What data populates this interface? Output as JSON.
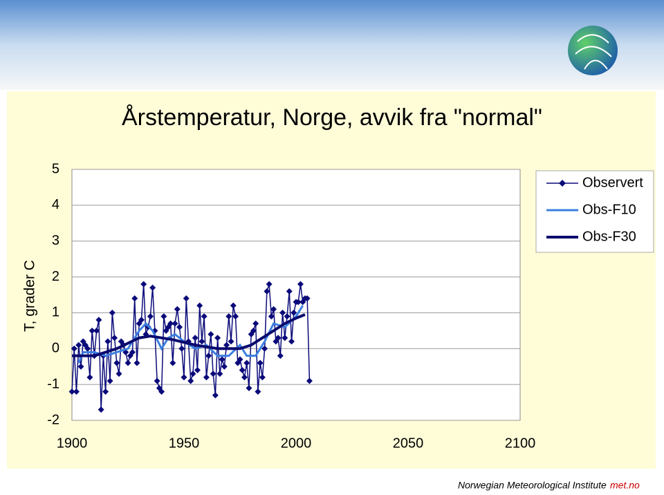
{
  "chart_data": {
    "type": "line",
    "title": "Årstemperatur, Norge, avvik fra \"normal\"",
    "y_label": "T, grader C",
    "xlim": [
      1900,
      2100
    ],
    "xticks": [
      1900,
      1950,
      2000,
      2050,
      2100
    ],
    "ylim": [
      -2,
      5
    ],
    "yticks": [
      -2,
      -1,
      0,
      1,
      2,
      3,
      4,
      5
    ],
    "grid": true,
    "legend": "top-right",
    "series": [
      {
        "name": "Observert",
        "color": "#0a0a7a",
        "marker": "diamond",
        "x": [
          1900,
          1901,
          1902,
          1903,
          1904,
          1905,
          1906,
          1907,
          1908,
          1909,
          1910,
          1911,
          1912,
          1913,
          1914,
          1915,
          1916,
          1917,
          1918,
          1919,
          1920,
          1921,
          1922,
          1923,
          1924,
          1925,
          1926,
          1927,
          1928,
          1929,
          1930,
          1931,
          1932,
          1933,
          1934,
          1935,
          1936,
          1937,
          1938,
          1939,
          1940,
          1941,
          1942,
          1943,
          1944,
          1945,
          1946,
          1947,
          1948,
          1949,
          1950,
          1951,
          1952,
          1953,
          1954,
          1955,
          1956,
          1957,
          1958,
          1959,
          1960,
          1961,
          1962,
          1963,
          1964,
          1965,
          1966,
          1967,
          1968,
          1969,
          1970,
          1971,
          1972,
          1973,
          1974,
          1975,
          1976,
          1977,
          1978,
          1979,
          1980,
          1981,
          1982,
          1983,
          1984,
          1985,
          1986,
          1987,
          1988,
          1989,
          1990,
          1991,
          1992,
          1993,
          1994,
          1995,
          1996,
          1997,
          1998,
          1999,
          2000,
          2001,
          2002,
          2003,
          2004,
          2005,
          2006
        ],
        "values": [
          -1.2,
          0.0,
          -1.2,
          0.1,
          -0.5,
          0.2,
          0.1,
          0.0,
          -0.8,
          0.5,
          -0.2,
          0.5,
          0.8,
          -1.7,
          -0.2,
          -1.2,
          0.2,
          -0.9,
          1.0,
          0.3,
          -0.4,
          -0.7,
          0.2,
          0.1,
          -0.1,
          -0.4,
          -0.2,
          -0.1,
          1.4,
          -0.4,
          0.7,
          0.8,
          1.8,
          0.4,
          0.6,
          0.9,
          1.7,
          0.5,
          -0.9,
          -1.1,
          -1.2,
          0.9,
          0.5,
          0.6,
          0.7,
          -0.4,
          0.7,
          1.1,
          0.6,
          0.0,
          -0.8,
          1.4,
          0.2,
          -0.9,
          -0.7,
          0.3,
          -0.6,
          1.2,
          0.2,
          0.9,
          -0.8,
          -0.2,
          0.4,
          -0.7,
          -1.3,
          0.3,
          -0.7,
          -0.3,
          -0.5,
          0.1,
          0.9,
          0.2,
          1.2,
          0.9,
          -0.4,
          -0.3,
          -0.6,
          -0.8,
          -0.4,
          -1.1,
          0.4,
          0.5,
          0.7,
          -1.2,
          -0.4,
          -0.8,
          0.0,
          1.6,
          1.8,
          0.9,
          1.1,
          0.2,
          0.3,
          -0.2,
          1.0,
          0.3,
          0.9,
          1.6,
          0.2,
          1.0,
          1.3,
          1.3,
          1.8,
          1.3,
          1.4,
          1.4,
          -0.9
        ]
      },
      {
        "name": "Obs-F10",
        "color": "#3a7fe0",
        "x": [
          1903,
          1905,
          1910,
          1915,
          1920,
          1925,
          1930,
          1933,
          1936,
          1940,
          1943,
          1946,
          1950,
          1955,
          1960,
          1965,
          1970,
          1975,
          1978,
          1982,
          1986,
          1990,
          1995,
          2000,
          2003
        ],
        "values": [
          -0.4,
          -0.1,
          -0.1,
          -0.2,
          -0.1,
          0.0,
          0.5,
          0.7,
          0.5,
          0.0,
          0.3,
          0.4,
          0.2,
          0.0,
          0.1,
          -0.2,
          -0.2,
          0.1,
          -0.2,
          -0.2,
          0.2,
          0.7,
          0.6,
          0.9,
          1.2
        ]
      },
      {
        "name": "Obs-F30",
        "color": "#0a0a6e",
        "x": [
          1900,
          1910,
          1920,
          1930,
          1935,
          1945,
          1955,
          1965,
          1970,
          1975,
          1980,
          1985,
          1990,
          1995,
          2000,
          2004
        ],
        "values": [
          -0.2,
          -0.2,
          0.0,
          0.3,
          0.35,
          0.25,
          0.1,
          0.0,
          0.0,
          0.0,
          0.1,
          0.3,
          0.5,
          0.7,
          0.85,
          0.95
        ]
      }
    ]
  },
  "footer": {
    "institute": "Norwegian Meteorological Institute",
    "site": "met.no"
  }
}
